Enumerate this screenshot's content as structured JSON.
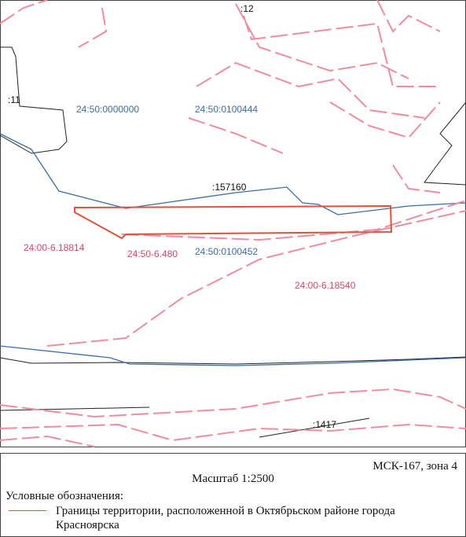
{
  "map": {
    "labels": [
      ":12",
      ":11",
      "24:50:0000000",
      "24:50:0100444",
      ":157160",
      "24:00-6.18814",
      "24:50-6.480",
      "24:50:0100452",
      "24:00-6.18540",
      ":1417"
    ]
  },
  "legend": {
    "crs": "МСК-167, зона 4",
    "scale": "Масштаб 1:2500",
    "title": "Условные обозначения:",
    "items": [
      {
        "text": "Границы территории, расположенной в Октябрьском районе города Красноярска"
      }
    ]
  }
}
